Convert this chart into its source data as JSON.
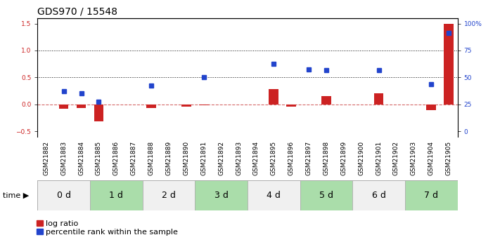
{
  "title": "GDS970 / 15548",
  "samples": [
    "GSM21882",
    "GSM21883",
    "GSM21884",
    "GSM21885",
    "GSM21886",
    "GSM21887",
    "GSM21888",
    "GSM21889",
    "GSM21890",
    "GSM21891",
    "GSM21892",
    "GSM21893",
    "GSM21894",
    "GSM21895",
    "GSM21896",
    "GSM21897",
    "GSM21898",
    "GSM21899",
    "GSM21900",
    "GSM21901",
    "GSM21902",
    "GSM21903",
    "GSM21904",
    "GSM21905"
  ],
  "log_ratio": [
    0.0,
    -0.08,
    -0.07,
    -0.32,
    0.0,
    0.0,
    -0.07,
    0.0,
    -0.04,
    -0.02,
    0.0,
    0.0,
    0.0,
    0.28,
    -0.04,
    0.0,
    0.15,
    0.0,
    0.0,
    0.2,
    0.0,
    0.0,
    -0.1,
    1.5
  ],
  "percentile_rank": [
    0.0,
    0.25,
    0.2,
    0.05,
    0.0,
    0.0,
    0.35,
    0.0,
    0.0,
    0.5,
    0.0,
    0.0,
    0.0,
    0.75,
    0.0,
    0.65,
    0.63,
    0.0,
    0.0,
    0.63,
    0.0,
    0.0,
    0.37,
    1.33
  ],
  "time_groups": [
    {
      "label": "0 d",
      "start": 0,
      "end": 2
    },
    {
      "label": "1 d",
      "start": 3,
      "end": 5
    },
    {
      "label": "2 d",
      "start": 6,
      "end": 8
    },
    {
      "label": "3 d",
      "start": 9,
      "end": 11
    },
    {
      "label": "4 d",
      "start": 12,
      "end": 14
    },
    {
      "label": "5 d",
      "start": 15,
      "end": 17
    },
    {
      "label": "6 d",
      "start": 18,
      "end": 20
    },
    {
      "label": "7 d",
      "start": 21,
      "end": 23
    }
  ],
  "group_colors": [
    "#f0f0f0",
    "#aaddaa"
  ],
  "ylim": [
    -0.6,
    1.6
  ],
  "yticks_left": [
    -0.5,
    0.0,
    0.5,
    1.0,
    1.5
  ],
  "right_tick_positions": [
    -0.5,
    0.0,
    0.5,
    1.0,
    1.5
  ],
  "right_tick_labels": [
    "0",
    "25",
    "50",
    "75",
    "100%"
  ],
  "bar_color_red": "#cc2222",
  "bar_color_blue": "#2244cc",
  "zero_line_color": "#cc4444",
  "hline_color": "#111111",
  "title_fontsize": 10,
  "tick_fontsize": 6.5,
  "label_fontsize": 7,
  "time_fontsize": 9,
  "legend_fontsize": 8,
  "bar_width": 0.55,
  "blue_marker_size": 5
}
